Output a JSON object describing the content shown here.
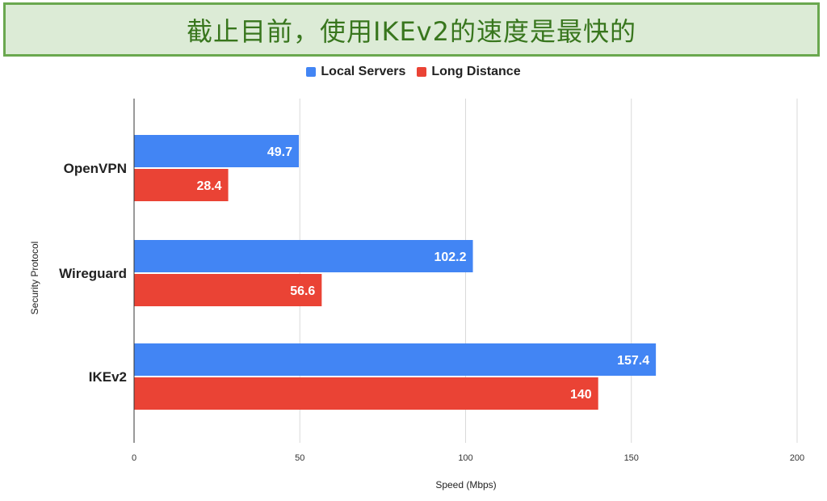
{
  "banner": {
    "title": "截止目前，使用IKEv2的速度是最快的"
  },
  "colors": {
    "local": "#4285f4",
    "long": "#ea4335",
    "banner_bg": "#dcebd6",
    "banner_border": "#6aa84f",
    "banner_text": "#38761d"
  },
  "chart_data": {
    "type": "bar",
    "orientation": "horizontal",
    "categories": [
      "OpenVPN",
      "Wireguard",
      "IKEv2"
    ],
    "series": [
      {
        "name": "Local Servers",
        "values": [
          49.7,
          102.2,
          157.4
        ],
        "labels": [
          "49.7",
          "102.2",
          "157.4"
        ]
      },
      {
        "name": "Long Distance",
        "values": [
          28.4,
          56.6,
          140
        ],
        "labels": [
          "28.4",
          "56.6",
          "140"
        ]
      }
    ],
    "xlabel": "Speed (Mbps)",
    "ylabel": "Security Protocol",
    "xlim": [
      0,
      200
    ],
    "xticks": [
      "0",
      "50",
      "100",
      "150",
      "200"
    ],
    "grid": true,
    "legend_position": "top-center"
  }
}
